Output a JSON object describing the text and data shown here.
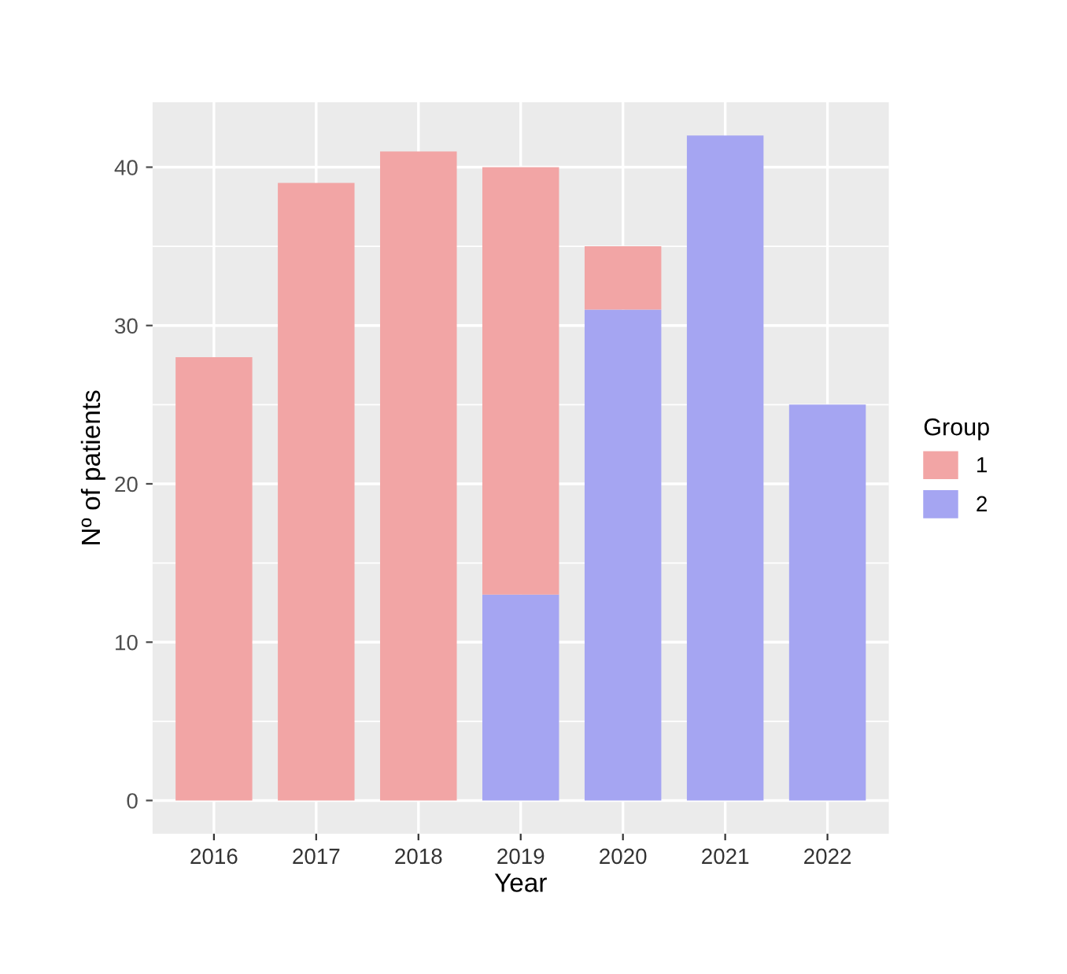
{
  "chart_data": {
    "type": "bar",
    "stacked": true,
    "xlabel": "Year",
    "ylabel": "Nº of patients",
    "legend_title": "Group",
    "legend": "right",
    "categories": [
      "2016",
      "2017",
      "2018",
      "2019",
      "2020",
      "2021",
      "2022"
    ],
    "series": [
      {
        "name": "2",
        "color": "#a5a5f2",
        "values": [
          0,
          0,
          0,
          13,
          31,
          42,
          25
        ]
      },
      {
        "name": "1",
        "color": "#f2a5a5",
        "values": [
          28,
          39,
          41,
          27,
          4,
          0,
          0
        ]
      }
    ],
    "ylim": [
      -2.1,
      44.1
    ],
    "yticks": [
      0,
      10,
      20,
      30,
      40
    ],
    "grid": true
  }
}
